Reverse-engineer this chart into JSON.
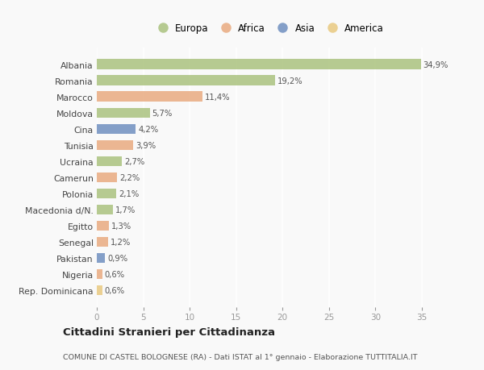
{
  "countries": [
    "Albania",
    "Romania",
    "Marocco",
    "Moldova",
    "Cina",
    "Tunisia",
    "Ucraina",
    "Camerun",
    "Polonia",
    "Macedonia d/N.",
    "Egitto",
    "Senegal",
    "Pakistan",
    "Nigeria",
    "Rep. Dominicana"
  ],
  "values": [
    34.9,
    19.2,
    11.4,
    5.7,
    4.2,
    3.9,
    2.7,
    2.2,
    2.1,
    1.7,
    1.3,
    1.2,
    0.9,
    0.6,
    0.6
  ],
  "labels": [
    "34,9%",
    "19,2%",
    "11,4%",
    "5,7%",
    "4,2%",
    "3,9%",
    "2,7%",
    "2,2%",
    "2,1%",
    "1,7%",
    "1,3%",
    "1,2%",
    "0,9%",
    "0,6%",
    "0,6%"
  ],
  "categories": [
    "Europa",
    "Europa",
    "Africa",
    "Europa",
    "Asia",
    "Africa",
    "Europa",
    "Africa",
    "Europa",
    "Europa",
    "Africa",
    "Africa",
    "Asia",
    "Africa",
    "America"
  ],
  "colors": {
    "Europa": "#a8c07a",
    "Africa": "#e8a87c",
    "Asia": "#6b8cbe",
    "America": "#e8c87c"
  },
  "legend_order": [
    "Europa",
    "Africa",
    "Asia",
    "America"
  ],
  "title": "Cittadini Stranieri per Cittadinanza",
  "subtitle": "COMUNE DI CASTEL BOLOGNESE (RA) - Dati ISTAT al 1° gennaio - Elaborazione TUTTITALIA.IT",
  "xlim": [
    0,
    37
  ],
  "xticks": [
    0,
    5,
    10,
    15,
    20,
    25,
    30,
    35
  ],
  "background_color": "#f9f9f9",
  "grid_color": "#ffffff",
  "bar_alpha": 0.82,
  "bar_height": 0.62
}
